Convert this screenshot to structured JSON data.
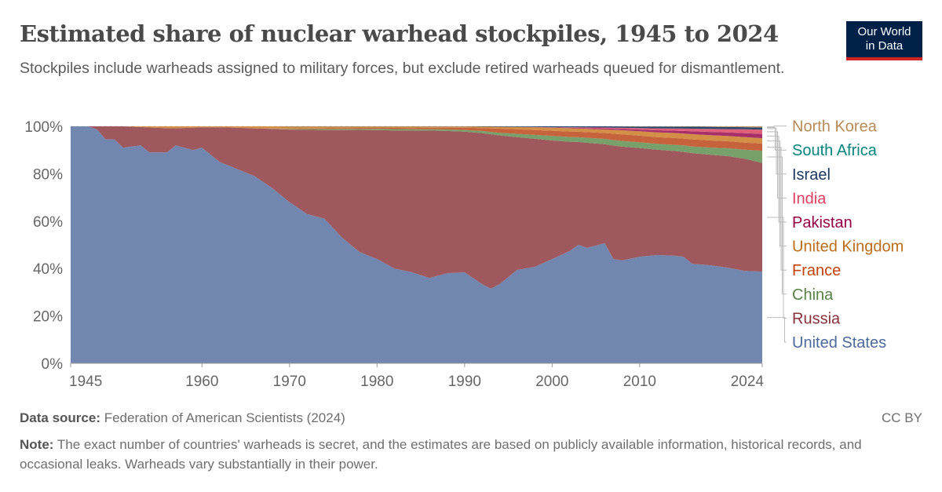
{
  "header": {
    "title": "Estimated share of nuclear warhead stockpiles, 1945 to 2024",
    "subtitle": "Stockpiles include warheads assigned to military forces, but exclude retired warheads queued for dismantlement.",
    "logo_text": "Our World in Data"
  },
  "footer": {
    "source_label": "Data source:",
    "source_value": "Federation of American Scientists (2024)",
    "license": "CC BY",
    "note_label": "Note:",
    "note_value": "The exact number of countries' warheads is secret, and the estimates are based on publicly available information, historical records, and occasional leaks. Warheads vary substantially in their power."
  },
  "chart_data": {
    "type": "area",
    "stacked": "relative",
    "ylim": [
      0,
      100
    ],
    "yticks": [
      "0%",
      "20%",
      "40%",
      "60%",
      "80%",
      "100%"
    ],
    "xticks": [
      "1945",
      "1960",
      "1970",
      "1980",
      "1990",
      "2000",
      "2010",
      "2024"
    ],
    "grid": true,
    "legend": "right",
    "x": [
      1945,
      1947,
      1948,
      1949,
      1950,
      1951,
      1953,
      1954,
      1956,
      1957,
      1959,
      1960,
      1962,
      1964,
      1966,
      1968,
      1970,
      1972,
      1974,
      1976,
      1978,
      1980,
      1982,
      1984,
      1986,
      1988,
      1990,
      1992,
      1993,
      1994,
      1996,
      1998,
      2000,
      2002,
      2003,
      2004,
      2006,
      2007,
      2008,
      2010,
      2012,
      2014,
      2015,
      2016,
      2018,
      2020,
      2022,
      2024
    ],
    "series": [
      {
        "name": "United States",
        "fill": "#7187b0",
        "text": "#4c6a9c",
        "values": [
          100,
          100,
          98.7,
          94.5,
          94.5,
          91,
          92,
          89,
          89,
          92,
          90,
          91,
          85,
          82,
          79,
          74,
          68,
          63,
          61,
          53,
          47,
          44,
          40,
          38.4,
          36,
          38,
          38.4,
          33.4,
          31.5,
          33.4,
          39.4,
          40.7,
          44,
          47.4,
          50,
          48.7,
          50.7,
          44,
          43.4,
          45,
          45.7,
          45.4,
          45,
          42,
          41.4,
          40.4,
          39,
          38.7
        ]
      },
      {
        "name": "Russia",
        "fill": "#9e585e",
        "text": "#883039",
        "values": [
          0,
          0,
          1.3,
          5.5,
          5.5,
          9,
          7.7,
          10.5,
          10.2,
          7.2,
          9.4,
          8.6,
          14.6,
          17.39,
          20.13,
          24.9,
          30.65,
          35.55,
          37.45,
          45.45,
          51.5,
          54.4,
          58.28,
          59.82,
          62.21,
          60.05,
          59.34,
          63.74,
          65.15,
          62.8,
          56.05,
          54.1,
          50.05,
          46.1,
          43.4,
          44.35,
          41.79,
          47.89,
          48.03,
          45.85,
          44.45,
          44.18,
          44.25,
          46.7,
          46.65,
          47.05,
          47.35,
          45.8
        ]
      },
      {
        "name": "China",
        "fill": "#77a06a",
        "text": "#578145",
        "values": [
          0,
          0,
          0,
          0,
          0,
          0,
          0,
          0,
          0,
          0,
          0,
          0,
          0,
          0,
          0.02,
          0.1,
          0.2,
          0.3,
          0.4,
          0.4,
          0.45,
          0.5,
          0.55,
          0.6,
          0.6,
          0.65,
          0.75,
          0.9,
          1.0,
          1.1,
          1.4,
          1.6,
          1.9,
          2.0,
          2.0,
          2.1,
          2.2,
          2.3,
          2.4,
          2.4,
          2.5,
          2.6,
          2.7,
          2.8,
          3.0,
          3.3,
          3.8,
          5.2
        ]
      },
      {
        "name": "France",
        "fill": "#c6623c",
        "text": "#c4420e",
        "values": [
          0,
          0,
          0,
          0,
          0,
          0,
          0,
          0,
          0,
          0,
          0,
          0,
          0,
          0.01,
          0.05,
          0.1,
          0.1,
          0.2,
          0.3,
          0.4,
          0.4,
          0.45,
          0.5,
          0.5,
          0.6,
          0.7,
          0.9,
          1.2,
          1.5,
          1.7,
          1.9,
          2.0,
          2.2,
          2.3,
          2.3,
          2.4,
          2.5,
          2.7,
          2.8,
          2.8,
          2.8,
          2.9,
          2.9,
          3.0,
          3.0,
          3.0,
          3.0,
          3.0
        ]
      },
      {
        "name": "United Kingdom",
        "fill": "#d38f45",
        "text": "#bc6d19",
        "values": [
          0,
          0,
          0,
          0,
          0,
          0,
          0.3,
          0.5,
          0.8,
          0.8,
          0.6,
          0.4,
          0.4,
          0.6,
          0.8,
          0.9,
          1.0,
          0.9,
          0.8,
          0.7,
          0.6,
          0.6,
          0.6,
          0.6,
          0.5,
          0.5,
          0.5,
          0.6,
          0.7,
          0.8,
          1.0,
          1.2,
          1.3,
          1.4,
          1.4,
          1.4,
          1.5,
          1.6,
          1.7,
          1.9,
          2.0,
          2.1,
          2.1,
          2.2,
          2.2,
          2.2,
          2.3,
          2.3
        ]
      },
      {
        "name": "Pakistan",
        "fill": "#a8306a",
        "text": "#970046",
        "values": [
          0,
          0,
          0,
          0,
          0,
          0,
          0,
          0,
          0,
          0,
          0,
          0,
          0,
          0,
          0,
          0,
          0,
          0,
          0,
          0,
          0,
          0,
          0,
          0,
          0,
          0,
          0,
          0,
          0,
          0,
          0,
          0.05,
          0.1,
          0.2,
          0.25,
          0.3,
          0.4,
          0.5,
          0.55,
          0.7,
          0.9,
          1.0,
          1.1,
          1.2,
          1.4,
          1.5,
          1.7,
          1.8
        ]
      },
      {
        "name": "India",
        "fill": "#e0607a",
        "text": "#e03e5d",
        "values": [
          0,
          0,
          0,
          0,
          0,
          0,
          0,
          0,
          0,
          0,
          0,
          0,
          0,
          0,
          0,
          0,
          0,
          0,
          0,
          0,
          0,
          0,
          0,
          0,
          0,
          0,
          0,
          0,
          0,
          0,
          0,
          0.05,
          0.1,
          0.2,
          0.25,
          0.3,
          0.4,
          0.45,
          0.5,
          0.6,
          0.8,
          0.9,
          1.0,
          1.1,
          1.3,
          1.4,
          1.6,
          1.8
        ]
      },
      {
        "name": "Israel",
        "fill": "#2c4a70",
        "text": "#18375f",
        "values": [
          0,
          0,
          0,
          0,
          0,
          0,
          0,
          0,
          0,
          0,
          0,
          0,
          0,
          0,
          0,
          0,
          0.05,
          0.05,
          0.05,
          0.05,
          0.05,
          0.05,
          0.06,
          0.07,
          0.08,
          0.09,
          0.1,
          0.15,
          0.15,
          0.2,
          0.25,
          0.3,
          0.35,
          0.4,
          0.4,
          0.45,
          0.5,
          0.55,
          0.6,
          0.7,
          0.75,
          0.8,
          0.8,
          0.85,
          0.85,
          0.85,
          0.9,
          0.9
        ]
      },
      {
        "name": "South Africa",
        "fill": "#2a938d",
        "text": "#00847e",
        "values": [
          0,
          0,
          0,
          0,
          0,
          0,
          0,
          0,
          0,
          0,
          0,
          0,
          0,
          0,
          0,
          0,
          0,
          0,
          0,
          0,
          0,
          0,
          0.01,
          0.01,
          0.01,
          0.01,
          0.01,
          0.01,
          0,
          0,
          0,
          0,
          0,
          0,
          0,
          0,
          0,
          0,
          0,
          0,
          0,
          0,
          0,
          0,
          0,
          0,
          0,
          0
        ]
      },
      {
        "name": "North Korea",
        "fill": "#bf9565",
        "text": "#b88a57",
        "values": [
          0,
          0,
          0,
          0,
          0,
          0,
          0,
          0,
          0,
          0,
          0,
          0,
          0,
          0,
          0,
          0,
          0,
          0,
          0,
          0,
          0,
          0,
          0,
          0,
          0,
          0,
          0,
          0,
          0,
          0,
          0,
          0,
          0,
          0,
          0,
          0,
          0.01,
          0.01,
          0.02,
          0.05,
          0.1,
          0.12,
          0.15,
          0.15,
          0.2,
          0.3,
          0.35,
          0.5
        ]
      }
    ]
  }
}
